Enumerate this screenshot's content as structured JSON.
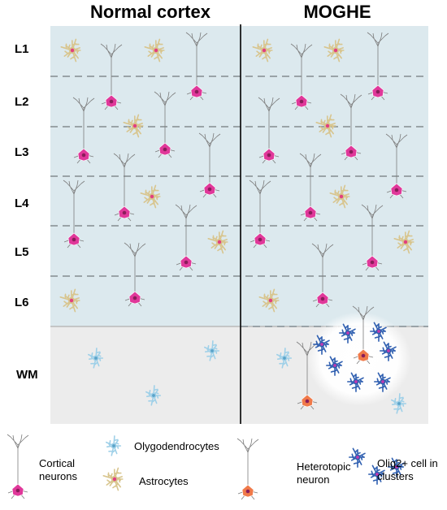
{
  "titles": {
    "left": "Normal cortex",
    "right": "MOGHE"
  },
  "layers": [
    {
      "label": "L1"
    },
    {
      "label": "L2"
    },
    {
      "label": "L3"
    },
    {
      "label": "L4"
    },
    {
      "label": "L5"
    },
    {
      "label": "L6"
    },
    {
      "label": "WM"
    }
  ],
  "legend": {
    "cortical_neurons": "Cortical neurons",
    "olygodendrocytes": "Olygodendrocytes",
    "astrocytes": "Astrocytes",
    "heterotopic_neuron": "Heterotopic neuron",
    "olig2_clusters": "Olig2+ cell in clusters"
  },
  "colors": {
    "cortex_bg": "#dce9ee",
    "wm_bg": "#ececec",
    "neuron": "#e0389a",
    "neuron_nucleus": "#8a1d5a",
    "astrocyte": "#d8c58e",
    "astrocyte_center": "#e2407f",
    "oligodendrocyte": "#9fd0e8",
    "oligodendrocyte_center": "#5aa3c9",
    "heterotopic_neuron": "#f07a4a",
    "olig2_cell": "#2f5fb0",
    "olig2_center": "#c03ab0"
  }
}
